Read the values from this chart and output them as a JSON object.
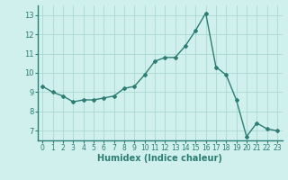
{
  "x": [
    0,
    1,
    2,
    3,
    4,
    5,
    6,
    7,
    8,
    9,
    10,
    11,
    12,
    13,
    14,
    15,
    16,
    17,
    18,
    19,
    20,
    21,
    22,
    23
  ],
  "y": [
    9.3,
    9.0,
    8.8,
    8.5,
    8.6,
    8.6,
    8.7,
    8.8,
    9.2,
    9.3,
    9.9,
    10.6,
    10.8,
    10.8,
    11.4,
    12.2,
    13.1,
    10.3,
    9.9,
    8.6,
    6.7,
    7.4,
    7.1,
    7.0
  ],
  "xlabel": "Humidex (Indice chaleur)",
  "ylim": [
    6.5,
    13.5
  ],
  "xlim": [
    -0.5,
    23.5
  ],
  "yticks": [
    7,
    8,
    9,
    10,
    11,
    12,
    13
  ],
  "xticks": [
    0,
    1,
    2,
    3,
    4,
    5,
    6,
    7,
    8,
    9,
    10,
    11,
    12,
    13,
    14,
    15,
    16,
    17,
    18,
    19,
    20,
    21,
    22,
    23
  ],
  "line_color": "#2d7d74",
  "marker": "D",
  "marker_size": 2.0,
  "bg_color": "#cff0ec",
  "grid_color": "#aad8d4",
  "line_width": 1.0,
  "tick_label_color": "#2d7d74",
  "xlabel_fontsize": 7.0,
  "tick_fontsize": 5.5
}
